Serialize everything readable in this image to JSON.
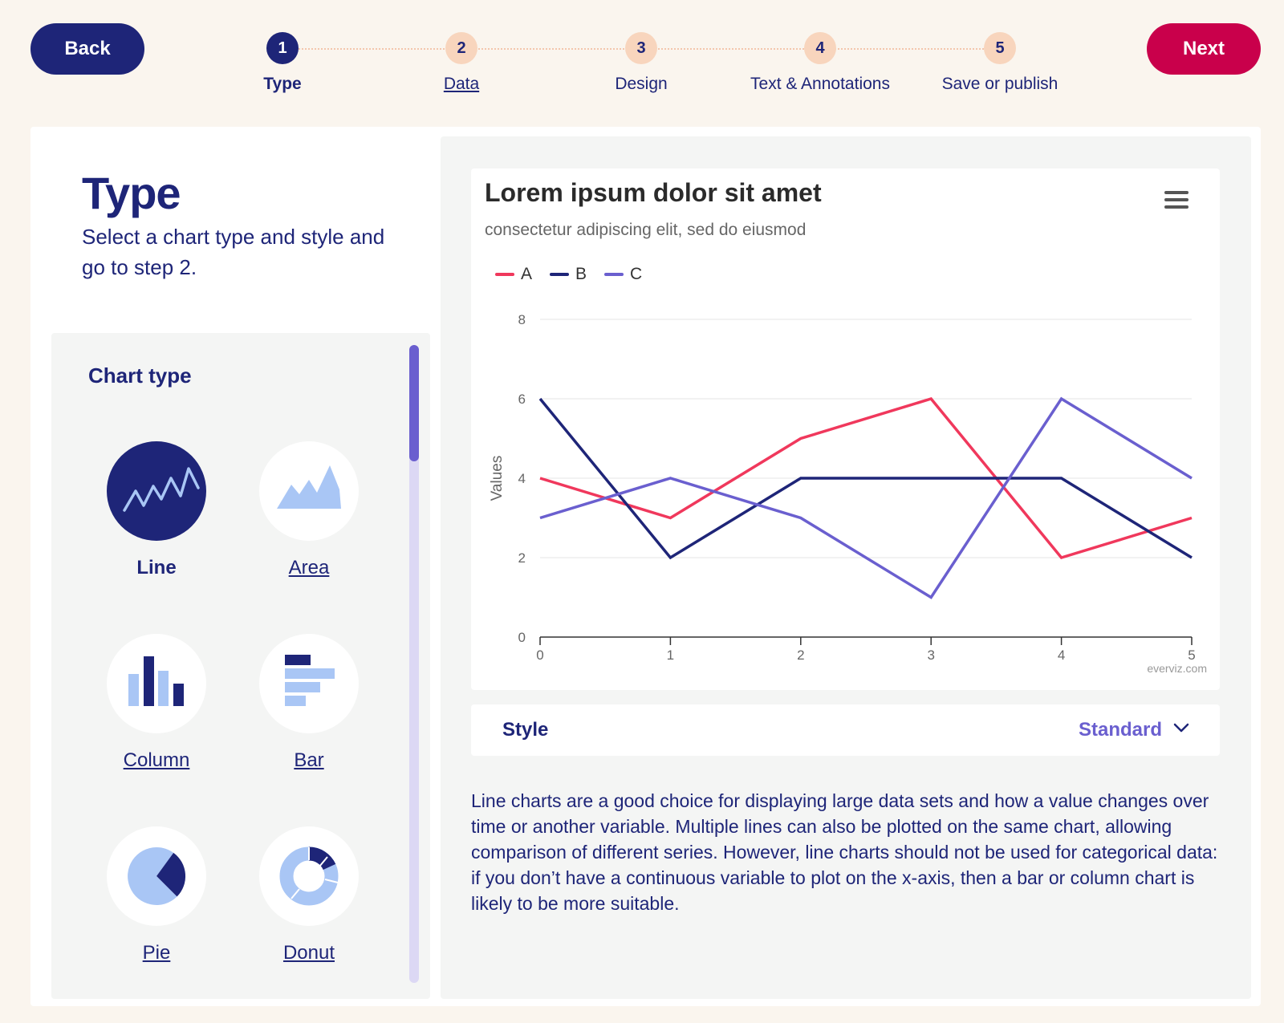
{
  "nav": {
    "back_label": "Back",
    "next_label": "Next"
  },
  "steps": [
    {
      "number": "1",
      "label": "Type"
    },
    {
      "number": "2",
      "label": "Data"
    },
    {
      "number": "3",
      "label": "Design"
    },
    {
      "number": "4",
      "label": "Text & Annotations"
    },
    {
      "number": "5",
      "label": "Save or publish"
    }
  ],
  "left": {
    "title": "Type",
    "subtitle": "Select a chart type and style and go to step 2.",
    "panel_title": "Chart type",
    "types": [
      {
        "label": "Line",
        "icon": "line-chart-icon"
      },
      {
        "label": "Area",
        "icon": "area-chart-icon"
      },
      {
        "label": "Column",
        "icon": "column-chart-icon"
      },
      {
        "label": "Bar",
        "icon": "bar-chart-icon"
      },
      {
        "label": "Pie",
        "icon": "pie-chart-icon"
      },
      {
        "label": "Donut",
        "icon": "donut-chart-icon"
      }
    ]
  },
  "chart_data": {
    "type": "line",
    "title": "Lorem ipsum dolor sit amet",
    "subtitle": "consectetur adipiscing elit, sed do eiusmod",
    "xlabel": "",
    "ylabel": "Values",
    "x": [
      0,
      1,
      2,
      3,
      4,
      5
    ],
    "ylim": [
      0,
      8
    ],
    "yticks": [
      0,
      2,
      4,
      6,
      8
    ],
    "grid": true,
    "legend_position": "top-left",
    "series": [
      {
        "name": "A",
        "color": "#f0385c",
        "values": [
          4,
          3,
          5,
          6,
          2,
          3
        ]
      },
      {
        "name": "B",
        "color": "#1e2578",
        "values": [
          6,
          2,
          4,
          4,
          4,
          2
        ]
      },
      {
        "name": "C",
        "color": "#6a5fcf",
        "values": [
          3,
          4,
          3,
          1,
          6,
          4
        ]
      }
    ],
    "credits": "everviz.com"
  },
  "style": {
    "label": "Style",
    "value": "Standard"
  },
  "description": "Line charts are a good choice for displaying large data sets and how a value changes over time or another variable. Multiple lines can also be plotted on the same chart, allowing comparison of different series. However, line charts should not be used for categorical data: if you don’t have a continuous variable to plot on the x-axis, then a bar or column chart is likely to be more suitable.",
  "colors": {
    "navy": "#1e2578",
    "accent": "#c9004b",
    "purple": "#6a5fcf",
    "peach": "#f8d5bd",
    "light_blue": "#a9c6f5"
  }
}
